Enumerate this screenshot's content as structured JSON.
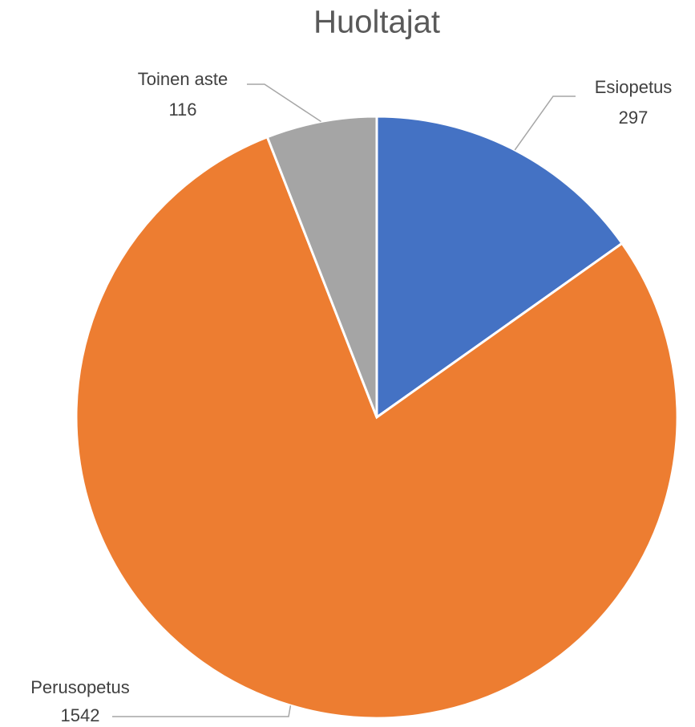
{
  "chart_data": {
    "type": "pie",
    "title": "Huoltajat",
    "categories": [
      "Esiopetus",
      "Perusopetus",
      "Toinen aste"
    ],
    "values": [
      297,
      1542,
      116
    ],
    "colors": [
      "#4472c4",
      "#ed7d31",
      "#a5a5a5"
    ]
  }
}
